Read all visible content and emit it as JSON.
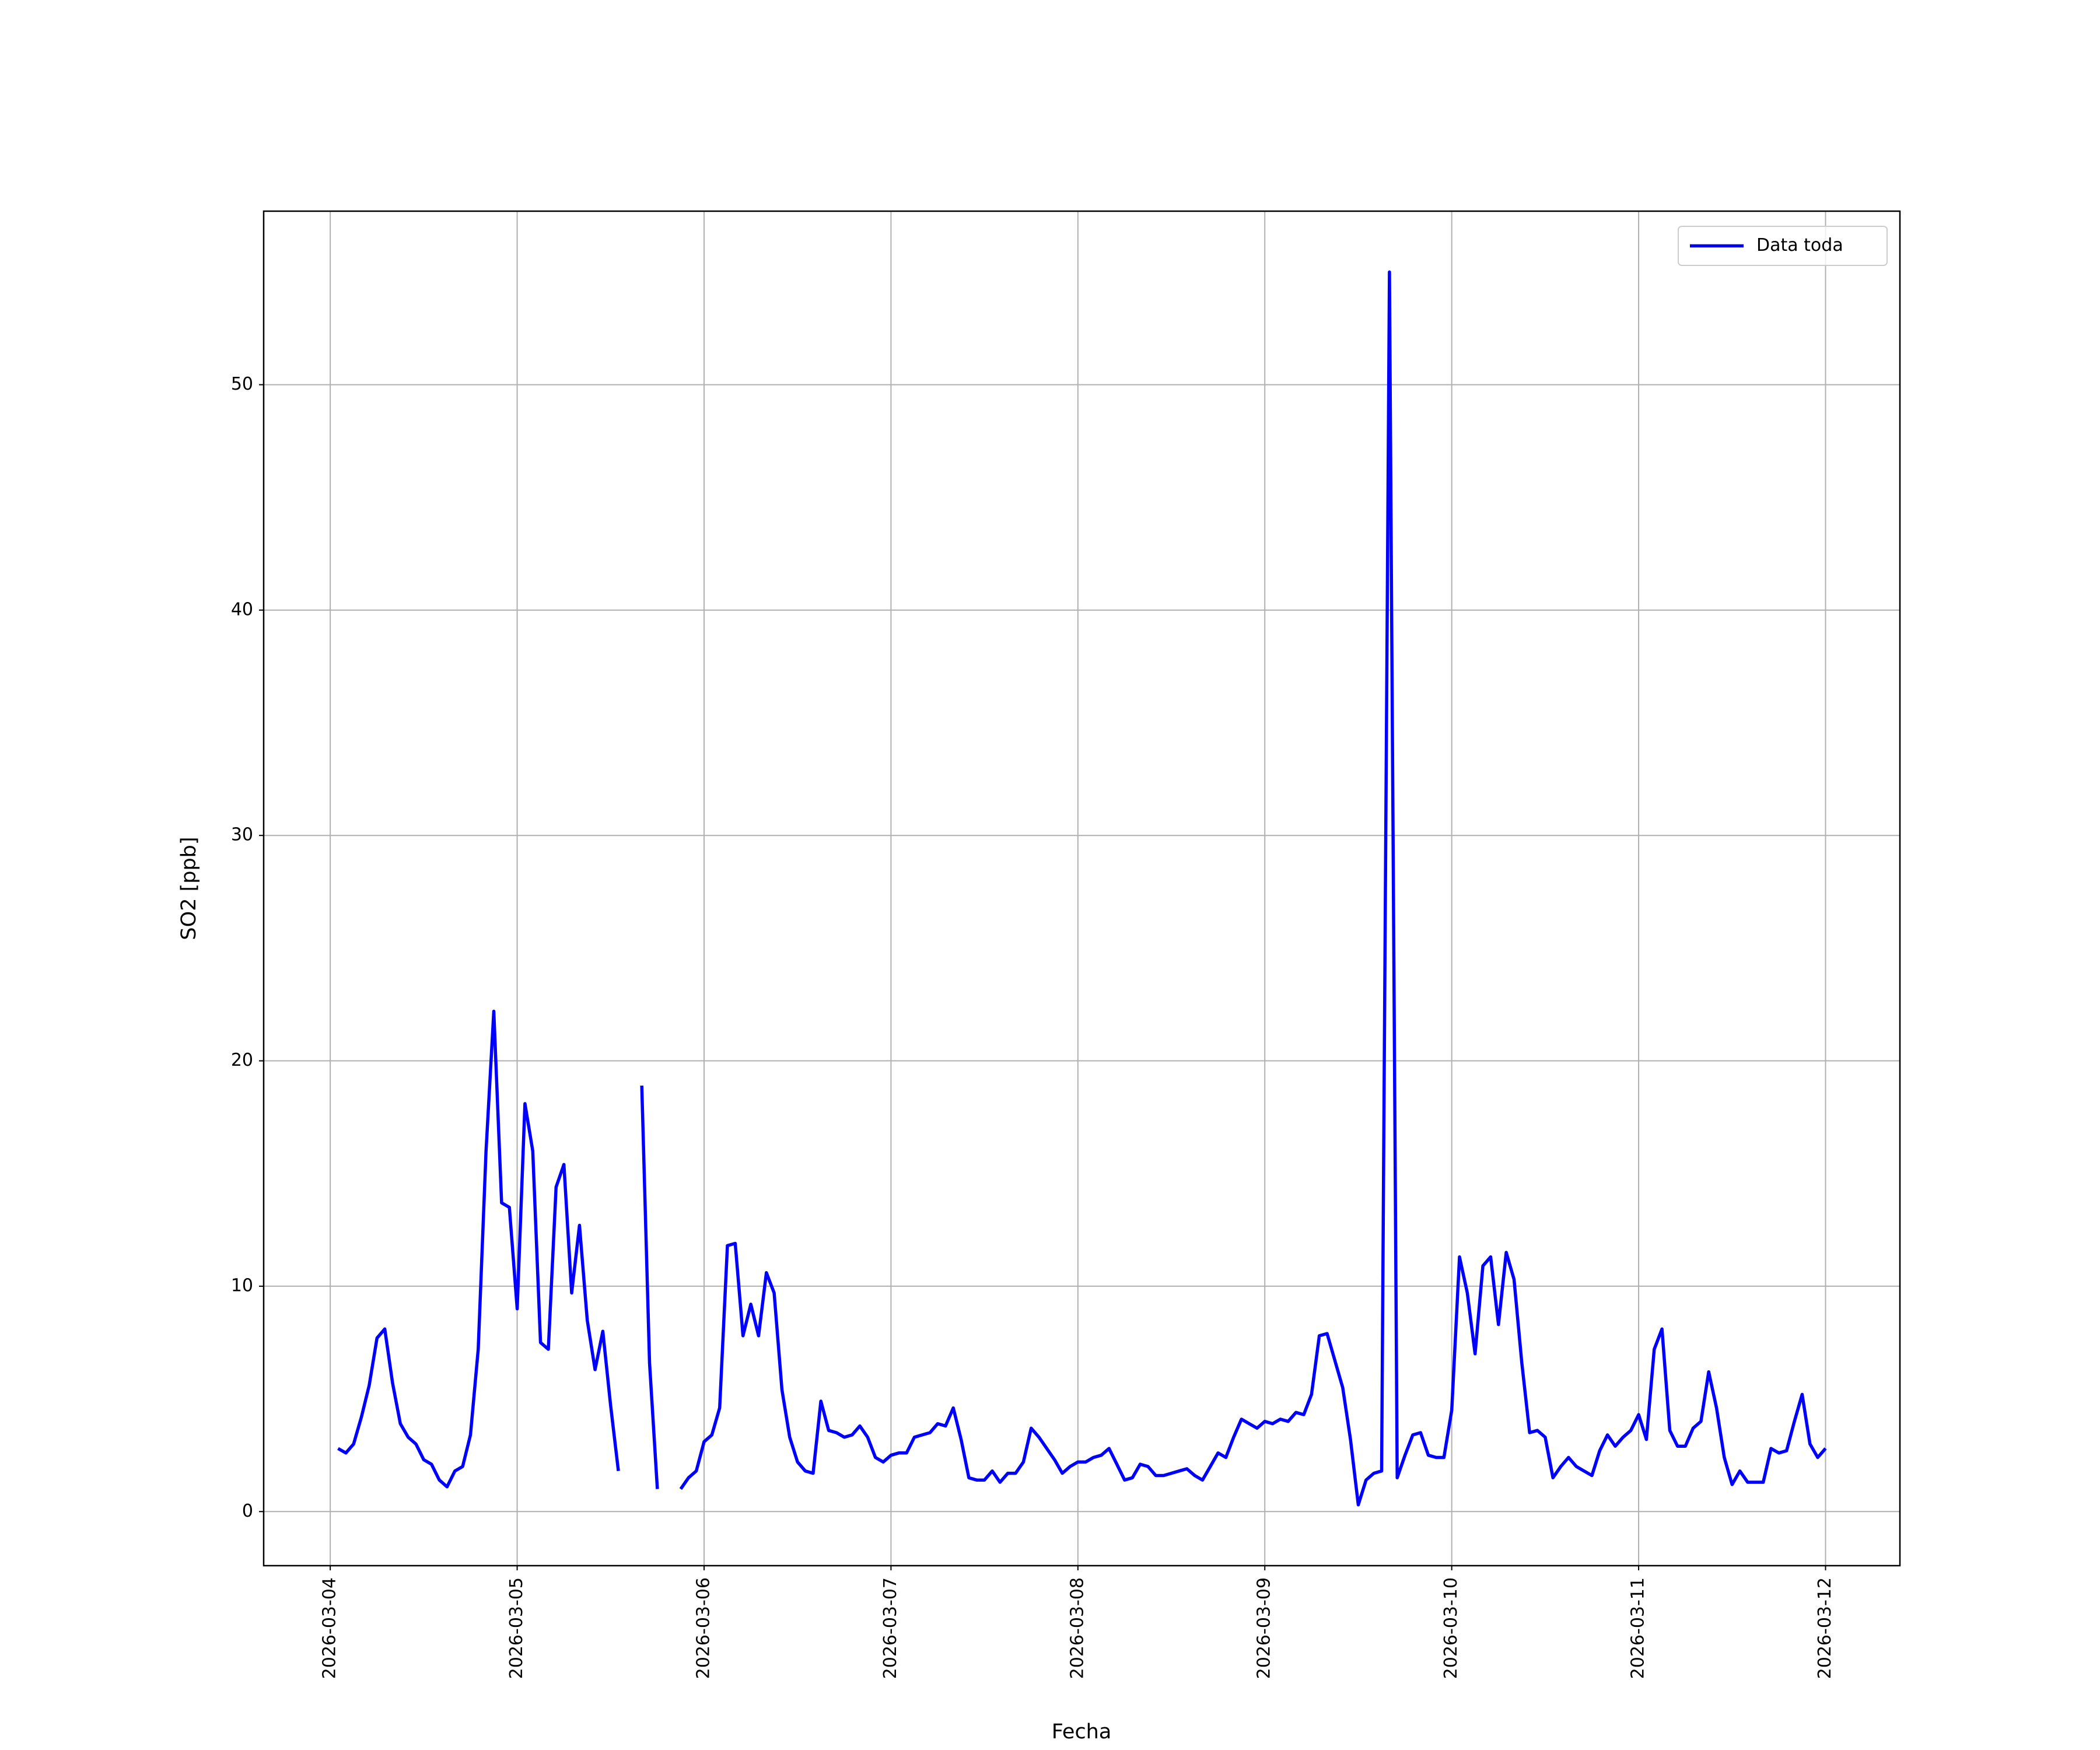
{
  "chart_data": {
    "type": "line",
    "xlabel": "Fecha",
    "ylabel": "SO2 [ppb]",
    "x": [
      "2026-03-04 01:00",
      "2026-03-04 02:00",
      "2026-03-04 03:00",
      "2026-03-04 04:00",
      "2026-03-04 05:00",
      "2026-03-04 06:00",
      "2026-03-04 07:00",
      "2026-03-04 08:00",
      "2026-03-04 09:00",
      "2026-03-04 10:00",
      "2026-03-04 11:00",
      "2026-03-04 12:00",
      "2026-03-04 13:00",
      "2026-03-04 14:00",
      "2026-03-04 15:00",
      "2026-03-04 16:00",
      "2026-03-04 17:00",
      "2026-03-04 18:00",
      "2026-03-04 19:00",
      "2026-03-04 20:00",
      "2026-03-04 21:00",
      "2026-03-04 22:00",
      "2026-03-04 23:00",
      "2026-03-05 00:00",
      "2026-03-05 01:00",
      "2026-03-05 02:00",
      "2026-03-05 03:00",
      "2026-03-05 04:00",
      "2026-03-05 05:00",
      "2026-03-05 06:00",
      "2026-03-05 07:00",
      "2026-03-05 08:00",
      "2026-03-05 09:00",
      "2026-03-05 10:00",
      "2026-03-05 11:00",
      "2026-03-05 12:00",
      "2026-03-05 13:00",
      "2026-03-05 14:00",
      "2026-03-05 15:00",
      "2026-03-05 16:00",
      "2026-03-05 17:00",
      "2026-03-05 18:00",
      "2026-03-05 19:00",
      "2026-03-05 20:00",
      "2026-03-05 21:00",
      "2026-03-05 22:00",
      "2026-03-05 23:00",
      "2026-03-06 00:00",
      "2026-03-06 01:00",
      "2026-03-06 02:00",
      "2026-03-06 03:00",
      "2026-03-06 04:00",
      "2026-03-06 05:00",
      "2026-03-06 06:00",
      "2026-03-06 07:00",
      "2026-03-06 08:00",
      "2026-03-06 09:00",
      "2026-03-06 10:00",
      "2026-03-06 11:00",
      "2026-03-06 12:00",
      "2026-03-06 13:00",
      "2026-03-06 14:00",
      "2026-03-06 15:00",
      "2026-03-06 16:00",
      "2026-03-06 17:00",
      "2026-03-06 18:00",
      "2026-03-06 19:00",
      "2026-03-06 20:00",
      "2026-03-06 21:00",
      "2026-03-06 22:00",
      "2026-03-06 23:00",
      "2026-03-07 00:00",
      "2026-03-07 01:00",
      "2026-03-07 02:00",
      "2026-03-07 03:00",
      "2026-03-07 04:00",
      "2026-03-07 05:00",
      "2026-03-07 06:00",
      "2026-03-07 07:00",
      "2026-03-07 08:00",
      "2026-03-07 09:00",
      "2026-03-07 10:00",
      "2026-03-07 11:00",
      "2026-03-07 12:00",
      "2026-03-07 13:00",
      "2026-03-07 14:00",
      "2026-03-07 15:00",
      "2026-03-07 16:00",
      "2026-03-07 17:00",
      "2026-03-07 18:00",
      "2026-03-07 19:00",
      "2026-03-07 20:00",
      "2026-03-07 21:00",
      "2026-03-07 22:00",
      "2026-03-07 23:00",
      "2026-03-08 00:00",
      "2026-03-08 01:00",
      "2026-03-08 02:00",
      "2026-03-08 03:00",
      "2026-03-08 04:00",
      "2026-03-08 05:00",
      "2026-03-08 06:00",
      "2026-03-08 07:00",
      "2026-03-08 08:00",
      "2026-03-08 09:00",
      "2026-03-08 10:00",
      "2026-03-08 11:00",
      "2026-03-08 12:00",
      "2026-03-08 13:00",
      "2026-03-08 14:00",
      "2026-03-08 15:00",
      "2026-03-08 16:00",
      "2026-03-08 17:00",
      "2026-03-08 18:00",
      "2026-03-08 19:00",
      "2026-03-08 20:00",
      "2026-03-08 21:00",
      "2026-03-08 22:00",
      "2026-03-08 23:00",
      "2026-03-09 00:00",
      "2026-03-09 01:00",
      "2026-03-09 02:00",
      "2026-03-09 03:00",
      "2026-03-09 04:00",
      "2026-03-09 05:00",
      "2026-03-09 06:00",
      "2026-03-09 07:00",
      "2026-03-09 08:00",
      "2026-03-09 09:00",
      "2026-03-09 10:00",
      "2026-03-09 11:00",
      "2026-03-09 12:00",
      "2026-03-09 13:00",
      "2026-03-09 14:00",
      "2026-03-09 15:00",
      "2026-03-09 16:00",
      "2026-03-09 17:00",
      "2026-03-09 18:00",
      "2026-03-09 19:00",
      "2026-03-09 20:00",
      "2026-03-09 21:00",
      "2026-03-09 22:00",
      "2026-03-09 23:00",
      "2026-03-10 00:00",
      "2026-03-10 01:00",
      "2026-03-10 02:00",
      "2026-03-10 03:00",
      "2026-03-10 04:00",
      "2026-03-10 05:00",
      "2026-03-10 06:00",
      "2026-03-10 07:00",
      "2026-03-10 08:00",
      "2026-03-10 09:00",
      "2026-03-10 10:00",
      "2026-03-10 11:00",
      "2026-03-10 12:00",
      "2026-03-10 13:00",
      "2026-03-10 14:00",
      "2026-03-10 15:00",
      "2026-03-10 16:00",
      "2026-03-10 17:00",
      "2026-03-10 18:00",
      "2026-03-10 19:00",
      "2026-03-10 20:00",
      "2026-03-10 21:00",
      "2026-03-10 22:00",
      "2026-03-10 23:00",
      "2026-03-11 00:00",
      "2026-03-11 01:00",
      "2026-03-11 02:00",
      "2026-03-11 03:00",
      "2026-03-11 04:00",
      "2026-03-11 05:00",
      "2026-03-11 06:00",
      "2026-03-11 07:00",
      "2026-03-11 08:00",
      "2026-03-11 09:00",
      "2026-03-11 10:00",
      "2026-03-11 11:00",
      "2026-03-11 12:00",
      "2026-03-11 13:00",
      "2026-03-11 14:00",
      "2026-03-11 15:00",
      "2026-03-11 16:00",
      "2026-03-11 17:00",
      "2026-03-11 18:00",
      "2026-03-11 19:00",
      "2026-03-11 20:00",
      "2026-03-11 21:00",
      "2026-03-11 22:00",
      "2026-03-11 23:00",
      "2026-03-12 00:00"
    ],
    "series": [
      {
        "name": "Data toda",
        "color": "#0000ff",
        "values": [
          2.8,
          2.6,
          3.0,
          4.2,
          5.6,
          7.7,
          8.1,
          5.7,
          3.9,
          3.3,
          3.0,
          2.3,
          2.1,
          1.4,
          1.1,
          1.8,
          2.0,
          3.4,
          7.2,
          16.0,
          22.2,
          13.7,
          13.5,
          9.0,
          18.1,
          16.0,
          7.5,
          7.2,
          14.4,
          15.4,
          9.7,
          12.7,
          8.5,
          6.3,
          8.0,
          4.7,
          1.8,
          null,
          null,
          18.9,
          6.6,
          1.0,
          null,
          null,
          1.0,
          1.5,
          1.8,
          3.1,
          3.4,
          4.6,
          11.8,
          11.9,
          7.8,
          9.2,
          7.8,
          10.6,
          9.7,
          5.4,
          3.3,
          2.2,
          1.8,
          1.7,
          4.9,
          3.6,
          3.5,
          3.3,
          3.4,
          3.8,
          3.3,
          2.4,
          2.2,
          2.5,
          2.6,
          2.6,
          3.3,
          3.4,
          3.5,
          3.9,
          3.8,
          4.6,
          3.2,
          1.5,
          1.4,
          1.4,
          1.8,
          1.3,
          1.7,
          1.7,
          2.2,
          3.7,
          3.3,
          2.8,
          2.3,
          1.7,
          2.0,
          2.2,
          2.2,
          2.4,
          2.5,
          2.8,
          2.1,
          1.4,
          1.5,
          2.1,
          2.0,
          1.6,
          1.6,
          1.7,
          1.8,
          1.9,
          1.6,
          1.4,
          2.0,
          2.6,
          2.4,
          3.3,
          4.1,
          3.9,
          3.7,
          4.0,
          3.9,
          4.1,
          4.0,
          4.4,
          4.3,
          5.2,
          7.8,
          7.9,
          6.7,
          5.5,
          3.2,
          0.3,
          1.4,
          1.7,
          1.8,
          55.0,
          1.5,
          2.5,
          3.4,
          3.5,
          2.5,
          2.4,
          2.4,
          4.5,
          11.3,
          9.7,
          7.0,
          10.9,
          11.3,
          8.3,
          11.5,
          10.3,
          6.6,
          3.5,
          3.6,
          3.3,
          1.5,
          2.0,
          2.4,
          2.0,
          1.8,
          1.6,
          2.7,
          3.4,
          2.9,
          3.3,
          3.6,
          4.3,
          3.2,
          7.2,
          8.1,
          3.6,
          2.9,
          2.9,
          3.7,
          4.0,
          6.2,
          4.6,
          2.4,
          1.2,
          1.8,
          1.3,
          1.3,
          1.3,
          2.8,
          2.6,
          2.7,
          4.0,
          5.2,
          3.0,
          2.4,
          2.8
        ]
      }
    ],
    "xlim": [
      "2026-03-03 15:27",
      "2026-03-12 09:33"
    ],
    "xticks": [
      "2026-03-04",
      "2026-03-05",
      "2026-03-06",
      "2026-03-07",
      "2026-03-08",
      "2026-03-09",
      "2026-03-10",
      "2026-03-11",
      "2026-03-12"
    ],
    "ylim": [
      -2.4,
      57.7
    ],
    "yticks": [
      0,
      10,
      20,
      30,
      40,
      50
    ],
    "grid": true,
    "legend": "upper right"
  }
}
